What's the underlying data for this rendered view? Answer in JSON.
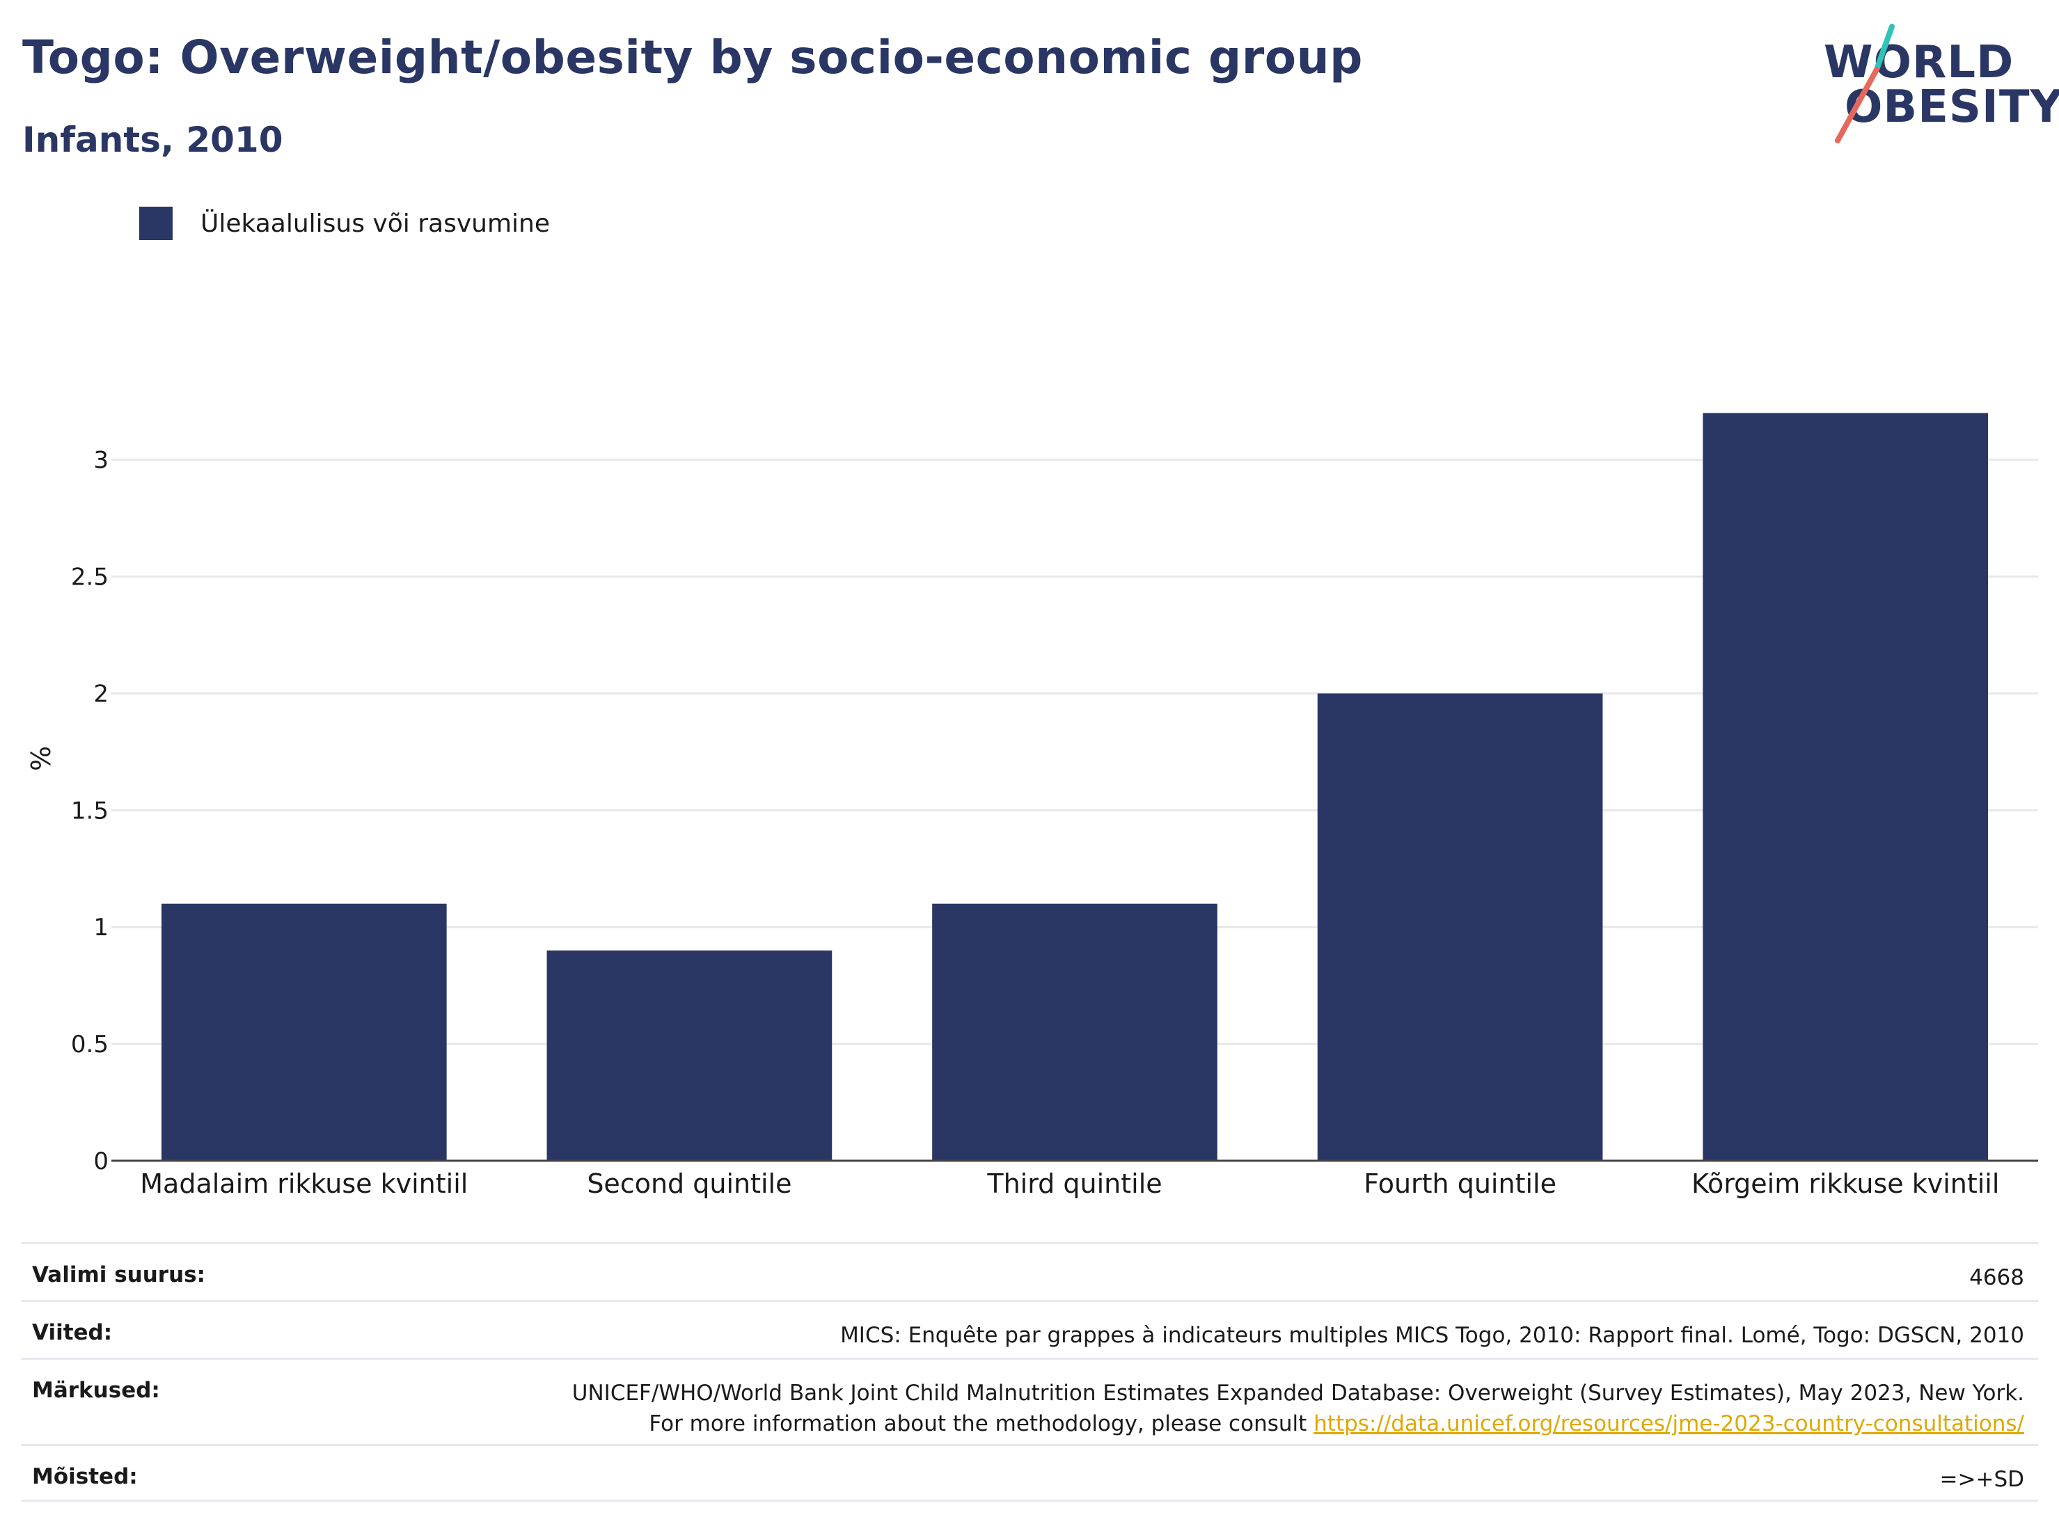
{
  "header": {
    "title": "Togo: Overweight/obesity by socio-economic group",
    "subtitle": "Infants, 2010"
  },
  "logo": {
    "line1": "WORLD",
    "line2": "OBESITY"
  },
  "colors": {
    "bar": "#2a3663",
    "grid": "#e8e8e8",
    "link": "#e0a800",
    "logo_teal": "#2ec4b6",
    "logo_coral": "#e8675a"
  },
  "chart_data": {
    "type": "bar",
    "categories": [
      "Madalaim rikkuse kvintiil",
      "Second quintile",
      "Third quintile",
      "Fourth quintile",
      "Kõrgeim rikkuse kvintiil"
    ],
    "series": [
      {
        "name": "Ülekaalulisus või rasvumine",
        "values": [
          1.1,
          0.9,
          1.1,
          2.0,
          3.2
        ]
      }
    ],
    "ylabel": "%",
    "xlabel": "",
    "ylim": [
      0,
      3.3
    ],
    "yticks": [
      0,
      0.5,
      1,
      1.5,
      2,
      2.5,
      3
    ],
    "ytick_labels": [
      "0",
      "0.5",
      "1",
      "1.5",
      "2",
      "2.5",
      "3"
    ],
    "grid": true,
    "legend_position": "top-left"
  },
  "meta": [
    {
      "key": "Valimi suurus:",
      "value": "4668"
    },
    {
      "key": "Viited:",
      "value": "MICS: Enquête par grappes à indicateurs multiples MICS Togo, 2010: Rapport final. Lomé, Togo: DGSCN, 2010"
    },
    {
      "key": "Märkused:",
      "value": "UNICEF/WHO/World Bank Joint Child Malnutrition Estimates Expanded Database: Overweight (Survey Estimates), May 2023, New York. For more information about the methodology, please consult",
      "link": "https://data.unicef.org/resources/jme-2023-country-consultations/"
    },
    {
      "key": "Mõisted:",
      "value": "=>+SD"
    }
  ]
}
